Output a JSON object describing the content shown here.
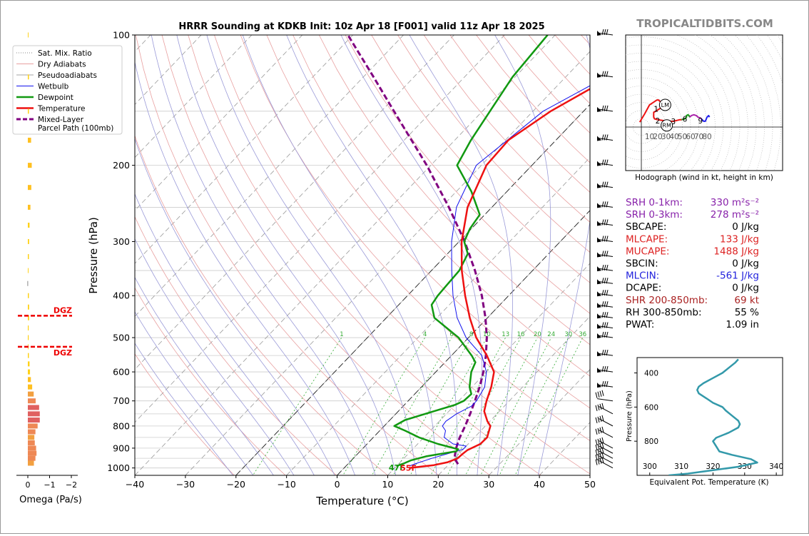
{
  "title": "HRRR Sounding at KDKB Init: 10z Apr 18 [F001] valid 11z Apr 18 2025",
  "brand": "TROPICALTIDBITS.COM",
  "colors": {
    "temperature": "#ee1111",
    "dewpoint": "#119911",
    "wetbulb": "#1111ee",
    "parcel": "#800080",
    "dry_adiabat": "#e8a0a0",
    "moist_adiabat": "#9a9ad8",
    "mixing_ratio": "#33aa33",
    "isotherm": "#888888",
    "theta_e": "#3399aa"
  },
  "chart_data": [
    {
      "name": "skewt",
      "type": "line",
      "xlabel": "Temperature (°C)",
      "ylabel": "Pressure (hPa)",
      "xlim": [
        -40,
        50
      ],
      "ylim": [
        1040,
        100
      ],
      "yscale": "log",
      "x_ticks": [
        "−40",
        "−30",
        "−20",
        "−10",
        "0",
        "10",
        "20",
        "30",
        "40",
        "50"
      ],
      "x_tick_values": [
        -40,
        -30,
        -20,
        -10,
        0,
        10,
        20,
        30,
        40,
        50
      ],
      "y_ticks": [
        100,
        200,
        300,
        400,
        500,
        600,
        700,
        800,
        900,
        1000
      ],
      "legend": [
        "Sat. Mix. Ratio",
        "Dry Adiabats",
        "Pseudoadiabats",
        "Wetbulb",
        "Dewpoint",
        "Temperature",
        "Mixed-Layer Parcel Path (100mb)"
      ],
      "legend_position": "top-left",
      "mixing_ratio_labels": [
        "1",
        "4",
        "6",
        "8",
        "10",
        "13",
        "16",
        "20",
        "24",
        "30",
        "36"
      ],
      "mixing_ratio_values": [
        1,
        4,
        6,
        8,
        10,
        13,
        16,
        20,
        24,
        30,
        36
      ],
      "surface_dewpoint_label": "47F",
      "surface_temperature_label": "55F",
      "temperature": [
        [
          1000,
          12.8
        ],
        [
          985,
          17.2
        ],
        [
          970,
          19.4
        ],
        [
          950,
          20.6
        ],
        [
          925,
          20.8
        ],
        [
          910,
          21
        ],
        [
          880,
          22.4
        ],
        [
          850,
          22.5
        ],
        [
          800,
          21
        ],
        [
          780,
          19.5
        ],
        [
          740,
          17
        ],
        [
          700,
          15.5
        ],
        [
          650,
          13.8
        ],
        [
          600,
          11.5
        ],
        [
          550,
          7
        ],
        [
          500,
          1.5
        ],
        [
          450,
          -3.5
        ],
        [
          400,
          -8.6
        ],
        [
          350,
          -14
        ],
        [
          300,
          -19.5
        ],
        [
          250,
          -24.8
        ],
        [
          200,
          -29
        ],
        [
          175,
          -29.4
        ],
        [
          150,
          -26.5
        ],
        [
          125,
          -21
        ],
        [
          110,
          -14.3
        ],
        [
          100,
          -13
        ]
      ],
      "dewpoint": [
        [
          990,
          10
        ],
        [
          975,
          11
        ],
        [
          960,
          11.8
        ],
        [
          940,
          14
        ],
        [
          925,
          17
        ],
        [
          915,
          19
        ],
        [
          905,
          19
        ],
        [
          880,
          14
        ],
        [
          850,
          9
        ],
        [
          820,
          5
        ],
        [
          800,
          2
        ],
        [
          775,
          3
        ],
        [
          740,
          7
        ],
        [
          715,
          10
        ],
        [
          700,
          11
        ],
        [
          675,
          11.2
        ],
        [
          650,
          9.5
        ],
        [
          600,
          7
        ],
        [
          570,
          6
        ],
        [
          550,
          4
        ],
        [
          500,
          -2
        ],
        [
          450,
          -10.5
        ],
        [
          420,
          -13.5
        ],
        [
          400,
          -14
        ],
        [
          380,
          -14.2
        ],
        [
          350,
          -14.5
        ],
        [
          320,
          -16
        ],
        [
          300,
          -19
        ],
        [
          280,
          -20.3
        ],
        [
          260,
          -21
        ],
        [
          230,
          -27
        ],
        [
          200,
          -34.8
        ],
        [
          175,
          -36.8
        ],
        [
          150,
          -38.5
        ],
        [
          125,
          -40.5
        ],
        [
          100,
          -41.5
        ]
      ],
      "wetbulb": [
        [
          990,
          12.5
        ],
        [
          975,
          13.5
        ],
        [
          950,
          15.5
        ],
        [
          925,
          18
        ],
        [
          905,
          20
        ],
        [
          890,
          20
        ],
        [
          880,
          17
        ],
        [
          860,
          15
        ],
        [
          850,
          14
        ],
        [
          820,
          13
        ],
        [
          800,
          11.5
        ],
        [
          780,
          11.3
        ],
        [
          750,
          12
        ],
        [
          720,
          13.5
        ],
        [
          700,
          13.5
        ],
        [
          650,
          12.5
        ],
        [
          600,
          10
        ],
        [
          550,
          6
        ],
        [
          500,
          -0.5
        ],
        [
          450,
          -6
        ],
        [
          400,
          -11
        ],
        [
          350,
          -16
        ],
        [
          300,
          -21.5
        ],
        [
          250,
          -27
        ],
        [
          200,
          -31
        ],
        [
          150,
          -28
        ],
        [
          125,
          -22
        ],
        [
          110,
          -15.5
        ],
        [
          100,
          -14.5
        ]
      ],
      "parcel": [
        [
          980,
          21.8
        ],
        [
          950,
          20
        ],
        [
          925,
          19.2
        ],
        [
          900,
          18.4
        ],
        [
          870,
          17.6
        ],
        [
          850,
          17.1
        ],
        [
          800,
          16
        ],
        [
          750,
          14.7
        ],
        [
          700,
          13.2
        ],
        [
          650,
          11.5
        ],
        [
          600,
          9.4
        ],
        [
          550,
          6.8
        ],
        [
          500,
          3.6
        ],
        [
          450,
          -0.4
        ],
        [
          400,
          -5.3
        ],
        [
          350,
          -11.4
        ],
        [
          300,
          -18.9
        ],
        [
          250,
          -28.5
        ],
        [
          200,
          -40.8
        ],
        [
          150,
          -57.5
        ],
        [
          125,
          -68
        ],
        [
          100,
          -81
        ]
      ],
      "barb_pressures": [
        100,
        125,
        150,
        175,
        200,
        225,
        250,
        275,
        300,
        325,
        350,
        375,
        400,
        425,
        450,
        475,
        500,
        550,
        600,
        650,
        700,
        750,
        800,
        850,
        900,
        925,
        950,
        975,
        1000
      ]
    },
    {
      "name": "omega",
      "type": "bar",
      "xlabel": "Omega (Pa/s)",
      "x_ticks": [
        "0",
        "−1",
        "−2"
      ],
      "x_tick_values": [
        0,
        -1,
        -2
      ],
      "xlim": [
        0.2,
        -2.2
      ],
      "dgz_label": "DGZ",
      "dgz_bounds_hpa": [
        445,
        525
      ],
      "levels": [
        100,
        125,
        150,
        175,
        200,
        225,
        250,
        275,
        300,
        325,
        350,
        375,
        400,
        425,
        450,
        475,
        500,
        525,
        550,
        575,
        600,
        625,
        650,
        675,
        700,
        725,
        750,
        775,
        800,
        825,
        850,
        875,
        900,
        925,
        950,
        975
      ],
      "values": [
        -0.03,
        -0.05,
        -0.05,
        -0.15,
        -0.18,
        -0.16,
        -0.12,
        -0.08,
        -0.06,
        -0.05,
        -0.03,
        0.02,
        -0.05,
        -0.06,
        -0.06,
        -0.04,
        -0.04,
        -0.03,
        -0.05,
        -0.08,
        -0.1,
        -0.14,
        -0.2,
        -0.27,
        -0.36,
        -0.52,
        -0.55,
        -0.55,
        -0.45,
        -0.35,
        -0.3,
        -0.32,
        -0.38,
        -0.4,
        -0.35,
        -0.28
      ]
    },
    {
      "name": "hodograph",
      "type": "line",
      "xlabel": "Hodograph (wind in kt, height in km)",
      "x_ticks": [
        "10",
        "20",
        "30",
        "40",
        "50",
        "60",
        "70",
        "80"
      ],
      "x_tick_values": [
        10,
        20,
        30,
        40,
        50,
        60,
        70,
        80
      ],
      "height_labels": [
        "1",
        "2",
        "3",
        "6",
        "9"
      ],
      "height_label_uv": [
        [
          18,
          22
        ],
        [
          20,
          8
        ],
        [
          39,
          7
        ],
        [
          53,
          10
        ],
        [
          72,
          8
        ]
      ],
      "marker_labels": [
        "LM",
        "RM"
      ],
      "marker_uv": [
        [
          29,
          27
        ],
        [
          31,
          2
        ]
      ],
      "segments": [
        {
          "color": "#ee1111",
          "uv": [
            [
              -2,
              6
            ],
            [
              4,
              16
            ],
            [
              10,
              27
            ],
            [
              19,
              33
            ],
            [
              21,
              33
            ],
            [
              26,
              28
            ],
            [
              25,
              24
            ],
            [
              17,
              19
            ],
            [
              15,
              18
            ],
            [
              15,
              12
            ],
            [
              16,
              10
            ],
            [
              20,
              9
            ],
            [
              32,
              7
            ],
            [
              35,
              7
            ],
            [
              39,
              7
            ],
            [
              43,
              8
            ],
            [
              47,
              9
            ],
            [
              49,
              9
            ]
          ]
        },
        {
          "color": "#119911",
          "uv": [
            [
              49,
              9
            ],
            [
              53,
              10
            ],
            [
              55,
              12
            ],
            [
              55,
              14
            ],
            [
              57,
              15
            ],
            [
              58,
              14
            ],
            [
              59,
              12
            ]
          ]
        },
        {
          "color": "#aa22aa",
          "uv": [
            [
              59,
              12
            ],
            [
              61,
              14
            ],
            [
              64,
              15
            ],
            [
              67,
              14
            ],
            [
              69,
              12
            ],
            [
              72,
              11
            ],
            [
              73,
              10
            ]
          ]
        },
        {
          "color": "#2222ee",
          "uv": [
            [
              73,
              10
            ],
            [
              76,
              7
            ],
            [
              78,
              7
            ],
            [
              80,
              12
            ],
            [
              82,
              14
            ],
            [
              83,
              12
            ]
          ]
        }
      ]
    },
    {
      "name": "theta_e",
      "type": "line",
      "xlabel": "Equivalent Pot. Temperature (K)",
      "ylabel": "Pressure (hPa)",
      "x_ticks": [
        "300",
        "310",
        "320",
        "330",
        "340"
      ],
      "x_tick_values": [
        300,
        310,
        320,
        330,
        340
      ],
      "y_ticks": [
        400,
        600,
        800
      ],
      "xlim": [
        296,
        342
      ],
      "ylim": [
        1000,
        310
      ],
      "values": [
        [
          1000,
          306
        ],
        [
          990,
          312
        ],
        [
          975,
          318
        ],
        [
          950,
          328
        ],
        [
          925,
          334
        ],
        [
          905,
          332
        ],
        [
          880,
          326
        ],
        [
          860,
          322
        ],
        [
          830,
          321
        ],
        [
          800,
          320
        ],
        [
          780,
          321
        ],
        [
          750,
          325
        ],
        [
          720,
          328
        ],
        [
          700,
          328.5
        ],
        [
          680,
          328
        ],
        [
          650,
          326
        ],
        [
          620,
          324
        ],
        [
          600,
          323
        ],
        [
          575,
          320
        ],
        [
          550,
          318
        ],
        [
          520,
          315.5
        ],
        [
          500,
          315
        ],
        [
          480,
          315.5
        ],
        [
          460,
          317
        ],
        [
          430,
          320
        ],
        [
          400,
          323
        ],
        [
          370,
          325
        ],
        [
          340,
          327
        ],
        [
          320,
          328
        ]
      ]
    }
  ],
  "stats": [
    {
      "label": "SRH 0-1km:",
      "value": "330 m²s⁻²",
      "color": "#8822aa"
    },
    {
      "label": "SRH 0-3km:",
      "value": "278 m²s⁻²",
      "color": "#8822aa"
    },
    {
      "label": "SBCAPE:",
      "value": "0 J/kg",
      "color": "#000000"
    },
    {
      "label": "MLCAPE:",
      "value": "133 J/kg",
      "color": "#dd2222"
    },
    {
      "label": "MUCAPE:",
      "value": "1488 J/kg",
      "color": "#dd2222"
    },
    {
      "label": "SBCIN:",
      "value": "0 J/kg",
      "color": "#000000"
    },
    {
      "label": "MLCIN:",
      "value": "-561 J/kg",
      "color": "#2222dd"
    },
    {
      "label": "DCAPE:",
      "value": "0 J/kg",
      "color": "#000000"
    },
    {
      "label": "SHR 200-850mb:",
      "value": "69 kt",
      "color": "#aa2222"
    },
    {
      "label": "RH 300-850mb:",
      "value": "55 %",
      "color": "#000000"
    },
    {
      "label": "PWAT:",
      "value": "1.09 in",
      "color": "#000000"
    }
  ]
}
